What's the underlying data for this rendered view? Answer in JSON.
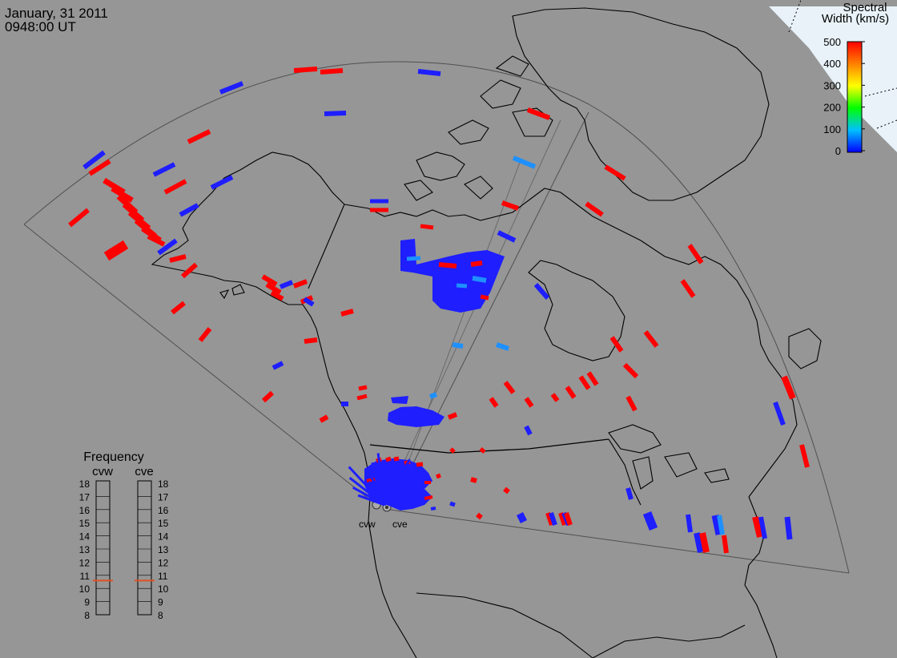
{
  "header": {
    "date": "January, 31 2011",
    "time": "0948:00 UT"
  },
  "colorbar": {
    "title_line1": "Spectral",
    "title_line2": "Width (km/s)",
    "ticks": [
      "500",
      "400",
      "300",
      "200",
      "100",
      "0"
    ],
    "range": [
      0,
      500
    ],
    "stops": [
      "#0000ff",
      "#00bfff",
      "#00ff00",
      "#ffff00",
      "#ff8000",
      "#ff0000"
    ]
  },
  "frequency_panel": {
    "title": "Frequency",
    "radars": [
      {
        "name": "cvw",
        "selected_mhz": 10.6
      },
      {
        "name": "cve",
        "selected_mhz": 10.6
      }
    ],
    "ticks": [
      "18",
      "17",
      "16",
      "15",
      "14",
      "13",
      "12",
      "11",
      "10",
      "9",
      "8"
    ],
    "marker_color": "#e05020"
  },
  "radar_sites": [
    {
      "label": "cvw"
    },
    {
      "label": "cve"
    }
  ],
  "colors": {
    "background": "#969696",
    "high_width": "#ff0000",
    "low_width": "#1e1eff",
    "mid_width": "#1e90ff",
    "coast": "#000000",
    "fov": "#444444"
  }
}
